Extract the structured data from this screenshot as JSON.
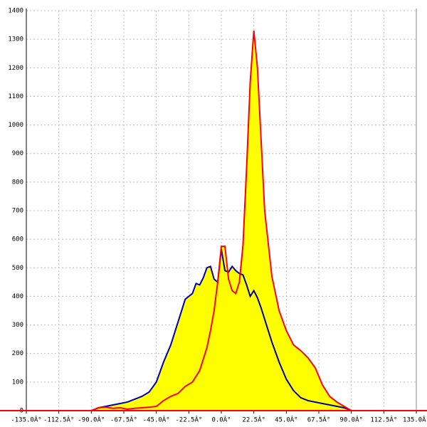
{
  "chart_data": {
    "type": "area",
    "x": [
      -90,
      -85,
      -80,
      -75,
      -70,
      -65,
      -60,
      -55,
      -50,
      -45,
      -40,
      -35,
      -30,
      -25,
      -20,
      -17.5,
      -15,
      -12.5,
      -10,
      -7.5,
      -5,
      -2.5,
      0,
      2.5,
      5,
      7.5,
      10,
      12.5,
      15,
      17.5,
      20,
      22.5,
      25,
      27.5,
      30,
      35,
      40,
      45,
      50,
      55,
      60,
      65,
      70,
      75,
      80,
      85,
      90
    ],
    "series": [
      {
        "color": "#0000aa",
        "fill": "#ffff00",
        "values": [
          0,
          10,
          15,
          20,
          25,
          30,
          40,
          50,
          65,
          100,
          170,
          230,
          310,
          390,
          410,
          445,
          440,
          465,
          500,
          505,
          460,
          450,
          565,
          490,
          485,
          505,
          490,
          480,
          475,
          440,
          400,
          420,
          395,
          360,
          320,
          240,
          170,
          110,
          70,
          45,
          35,
          30,
          25,
          20,
          15,
          10,
          0
        ]
      },
      {
        "color": "#ff0000",
        "fill": "#ffff00",
        "values": [
          0,
          10,
          12,
          8,
          10,
          5,
          8,
          10,
          12,
          15,
          35,
          50,
          60,
          85,
          100,
          120,
          140,
          180,
          220,
          280,
          350,
          450,
          575,
          575,
          460,
          420,
          410,
          450,
          580,
          850,
          1150,
          1330,
          1200,
          950,
          700,
          470,
          350,
          280,
          230,
          210,
          185,
          150,
          90,
          50,
          30,
          15,
          0
        ]
      }
    ],
    "xlim": [
      -135,
      135
    ],
    "xticks": [
      {
        "value": -135,
        "label": "-135.0Â°"
      },
      {
        "value": -112.5,
        "label": "-112.5Â°"
      },
      {
        "value": -90,
        "label": "-90.0Â°"
      },
      {
        "value": -67.5,
        "label": "-67.5Â°"
      },
      {
        "value": -45,
        "label": "-45.0Â°"
      },
      {
        "value": -22.5,
        "label": "-22.5Â°"
      },
      {
        "value": 0,
        "label": "0.0Â°"
      },
      {
        "value": 22.5,
        "label": "22.5Â°"
      },
      {
        "value": 45,
        "label": "45.0Â°"
      },
      {
        "value": 67.5,
        "label": "67.5Â°"
      },
      {
        "value": 90,
        "label": "90.0Â°"
      },
      {
        "value": 112.5,
        "label": "112.5Â°"
      },
      {
        "value": 135,
        "label": "135.0Â°"
      }
    ],
    "ylim": [
      0,
      1400
    ],
    "yticks": [
      0,
      100,
      200,
      300,
      400,
      500,
      600,
      700,
      800,
      900,
      1000,
      1100,
      1200,
      1300,
      1400
    ],
    "grid": true,
    "axis_color": "#ff0000"
  }
}
